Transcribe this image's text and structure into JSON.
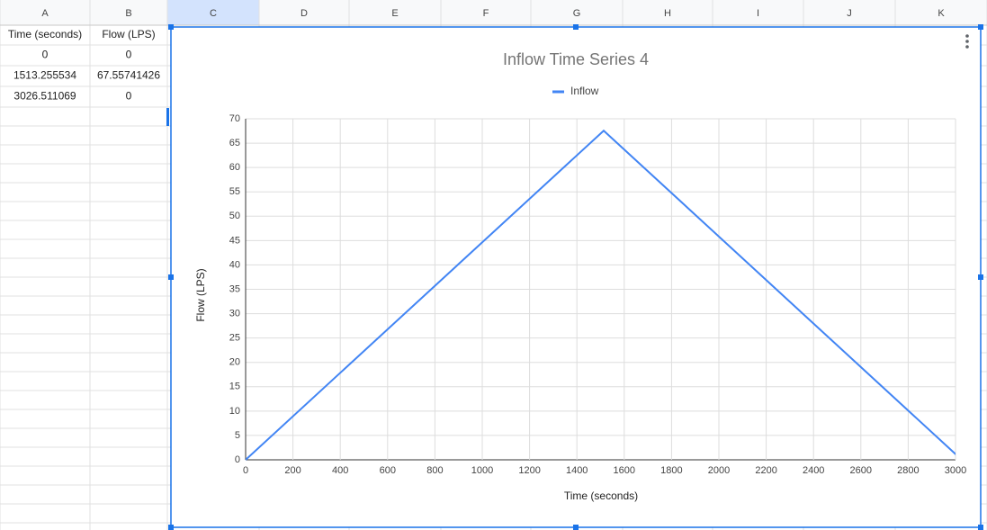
{
  "sheet": {
    "columns": [
      "A",
      "B",
      "C",
      "D",
      "E",
      "F",
      "G",
      "H",
      "I",
      "J",
      "K"
    ],
    "rows": [
      [
        "Time (seconds)",
        "Flow (LPS)"
      ],
      [
        "0",
        "0"
      ],
      [
        "1513.255534",
        "67.55741426"
      ],
      [
        "3026.511069",
        "0"
      ]
    ]
  },
  "chart_data": {
    "type": "line",
    "title": "Inflow Time Series 4",
    "x_label": "Time (seconds)",
    "y_label": "Flow (LPS)",
    "x": [
      0,
      1513.255534,
      3026.511069
    ],
    "series": [
      {
        "name": "Inflow",
        "color": "#4285f4",
        "values": [
          0,
          67.55741426,
          0
        ]
      }
    ],
    "xlim": [
      0,
      3000
    ],
    "xticks": [
      0,
      200,
      400,
      600,
      800,
      1000,
      1200,
      1400,
      1600,
      1800,
      2000,
      2200,
      2400,
      2600,
      2800,
      3000
    ],
    "ylim": [
      0,
      70
    ],
    "yticks": [
      0,
      5,
      10,
      15,
      20,
      25,
      30,
      35,
      40,
      45,
      50,
      55,
      60,
      65,
      70
    ],
    "grid": true,
    "legend": "top"
  }
}
